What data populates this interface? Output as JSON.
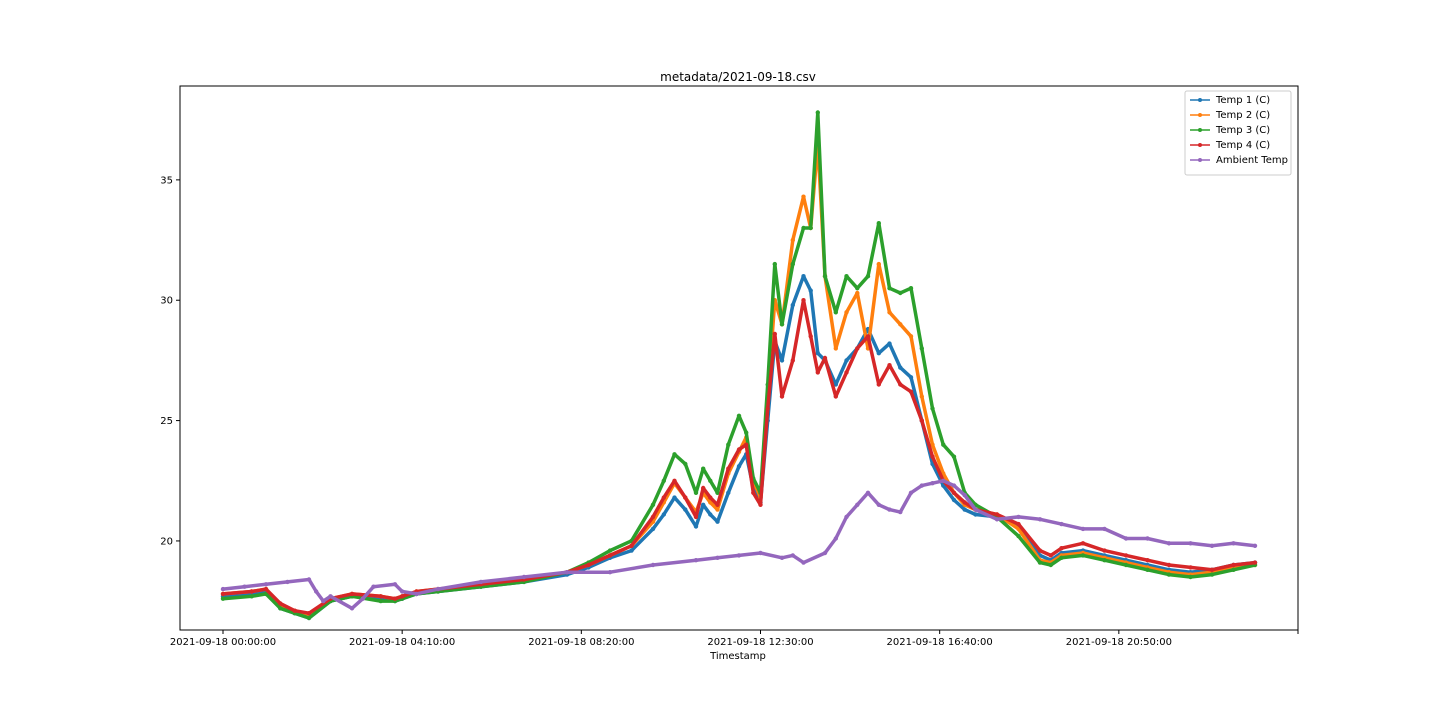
{
  "chart_data": {
    "type": "line",
    "title": "metadata/2021-09-18.csv",
    "xlabel": "Timestamp",
    "ylabel": "",
    "x_unit": "time of day (2021-09-18), hours",
    "xlim": [
      "2021-09-17 23:00:00",
      "2021-09-19 01:00:00"
    ],
    "ylim": [
      16.3,
      38.9
    ],
    "x_ticks": [
      {
        "value": "2021-09-18 00:00:00",
        "label": "2021-09-18 00:00:00"
      },
      {
        "value": "2021-09-18 04:10:00",
        "label": "2021-09-18 04:10:00"
      },
      {
        "value": "2021-09-18 08:20:00",
        "label": "2021-09-18 08:20:00"
      },
      {
        "value": "2021-09-18 12:30:00",
        "label": "2021-09-18 12:30:00"
      },
      {
        "value": "2021-09-18 16:40:00",
        "label": "2021-09-18 16:40:00"
      },
      {
        "value": "2021-09-18 20:50:00",
        "label": "2021-09-18 20:50:00"
      },
      {
        "value": "2021-09-19 01:00:00",
        "label": ""
      }
    ],
    "y_ticks": [
      20,
      25,
      30,
      35
    ],
    "grid": false,
    "legend_position": "top-right",
    "series": [
      {
        "name": "Temp 1 (C)",
        "color": "#1f77b4",
        "x": [
          "00:00",
          "00:40",
          "01:00",
          "01:20",
          "01:40",
          "02:00",
          "02:30",
          "03:00",
          "03:40",
          "04:00",
          "04:10",
          "04:30",
          "05:00",
          "06:00",
          "07:00",
          "08:00",
          "08:30",
          "09:00",
          "09:30",
          "10:00",
          "10:15",
          "10:30",
          "10:45",
          "11:00",
          "11:10",
          "11:20",
          "11:30",
          "11:45",
          "12:00",
          "12:10",
          "12:20",
          "12:30",
          "12:40",
          "12:50",
          "13:00",
          "13:15",
          "13:30",
          "13:40",
          "13:50",
          "14:00",
          "14:15",
          "14:30",
          "14:45",
          "15:00",
          "15:15",
          "15:30",
          "15:45",
          "16:00",
          "16:15",
          "16:30",
          "16:45",
          "17:00",
          "17:15",
          "17:30",
          "18:00",
          "18:30",
          "19:00",
          "19:15",
          "19:30",
          "20:00",
          "20:30",
          "21:00",
          "21:30",
          "22:00",
          "22:30",
          "23:00",
          "23:30",
          "24:00"
        ],
        "y": [
          17.7,
          17.8,
          17.9,
          17.2,
          17.0,
          16.8,
          17.5,
          17.7,
          17.6,
          17.5,
          17.6,
          17.8,
          17.9,
          18.1,
          18.3,
          18.6,
          18.9,
          19.3,
          19.6,
          20.5,
          21.1,
          21.8,
          21.3,
          20.6,
          21.5,
          21.1,
          20.8,
          22.0,
          23.1,
          23.6,
          22.2,
          21.6,
          25.0,
          28.3,
          27.5,
          29.8,
          31.0,
          30.4,
          27.8,
          27.5,
          26.5,
          27.5,
          28.0,
          28.8,
          27.8,
          28.2,
          27.2,
          26.8,
          25.0,
          23.2,
          22.3,
          21.7,
          21.3,
          21.1,
          21.0,
          20.6,
          19.4,
          19.2,
          19.5,
          19.6,
          19.4,
          19.2,
          19.0,
          18.8,
          18.7,
          18.8,
          19.0,
          19.1
        ]
      },
      {
        "name": "Temp 2 (C)",
        "color": "#ff7f0e",
        "x": [
          "00:00",
          "00:40",
          "01:00",
          "01:20",
          "01:40",
          "02:00",
          "02:30",
          "03:00",
          "03:40",
          "04:00",
          "04:10",
          "04:30",
          "05:00",
          "06:00",
          "07:00",
          "08:00",
          "08:30",
          "09:00",
          "09:30",
          "10:00",
          "10:15",
          "10:30",
          "10:45",
          "11:00",
          "11:10",
          "11:20",
          "11:30",
          "11:45",
          "12:00",
          "12:10",
          "12:20",
          "12:30",
          "12:40",
          "12:50",
          "13:00",
          "13:15",
          "13:30",
          "13:40",
          "13:50",
          "14:00",
          "14:15",
          "14:30",
          "14:45",
          "15:00",
          "15:15",
          "15:30",
          "15:45",
          "16:00",
          "16:15",
          "16:30",
          "16:45",
          "17:00",
          "17:15",
          "17:30",
          "18:00",
          "18:30",
          "19:00",
          "19:15",
          "19:30",
          "20:00",
          "20:30",
          "21:00",
          "21:30",
          "22:00",
          "22:30",
          "23:00",
          "23:30",
          "24:00"
        ],
        "y": [
          17.8,
          17.9,
          18.0,
          17.3,
          17.1,
          16.9,
          17.6,
          17.8,
          17.7,
          17.6,
          17.7,
          17.9,
          18.0,
          18.2,
          18.4,
          18.7,
          19.0,
          19.4,
          19.8,
          20.8,
          21.6,
          22.4,
          21.8,
          21.2,
          22.0,
          21.6,
          21.3,
          22.8,
          23.7,
          24.3,
          22.5,
          21.8,
          26.0,
          30.0,
          29.0,
          32.5,
          34.3,
          33.0,
          36.5,
          31.0,
          28.0,
          29.5,
          30.3,
          28.0,
          31.5,
          29.5,
          29.0,
          28.5,
          26.0,
          24.0,
          22.8,
          22.0,
          21.5,
          21.3,
          21.1,
          20.5,
          19.2,
          19.1,
          19.4,
          19.5,
          19.3,
          19.1,
          18.9,
          18.7,
          18.6,
          18.7,
          18.9,
          19.0
        ]
      },
      {
        "name": "Temp 3 (C)",
        "color": "#2ca02c",
        "x": [
          "00:00",
          "00:40",
          "01:00",
          "01:20",
          "01:40",
          "02:00",
          "02:30",
          "03:00",
          "03:40",
          "04:00",
          "04:10",
          "04:30",
          "05:00",
          "06:00",
          "07:00",
          "08:00",
          "08:30",
          "09:00",
          "09:30",
          "10:00",
          "10:15",
          "10:30",
          "10:45",
          "11:00",
          "11:10",
          "11:20",
          "11:30",
          "11:45",
          "12:00",
          "12:10",
          "12:20",
          "12:30",
          "12:40",
          "12:50",
          "13:00",
          "13:15",
          "13:30",
          "13:40",
          "13:50",
          "14:00",
          "14:15",
          "14:30",
          "14:45",
          "15:00",
          "15:15",
          "15:30",
          "15:45",
          "16:00",
          "16:15",
          "16:30",
          "16:45",
          "17:00",
          "17:15",
          "17:30",
          "18:00",
          "18:30",
          "19:00",
          "19:15",
          "19:30",
          "20:00",
          "20:30",
          "21:00",
          "21:30",
          "22:00",
          "22:30",
          "23:00",
          "23:30",
          "24:00"
        ],
        "y": [
          17.6,
          17.7,
          17.8,
          17.2,
          17.0,
          16.8,
          17.5,
          17.7,
          17.5,
          17.5,
          17.6,
          17.8,
          17.9,
          18.1,
          18.3,
          18.7,
          19.1,
          19.6,
          20.0,
          21.5,
          22.5,
          23.6,
          23.2,
          22.0,
          23.0,
          22.5,
          22.0,
          24.0,
          25.2,
          24.5,
          22.6,
          22.0,
          26.5,
          31.5,
          29.0,
          31.5,
          33.0,
          33.0,
          37.8,
          31.0,
          29.5,
          31.0,
          30.5,
          31.0,
          33.2,
          30.5,
          30.3,
          30.5,
          28.0,
          25.5,
          24.0,
          23.5,
          22.0,
          21.5,
          21.0,
          20.2,
          19.1,
          19.0,
          19.3,
          19.4,
          19.2,
          19.0,
          18.8,
          18.6,
          18.5,
          18.6,
          18.8,
          19.0
        ]
      },
      {
        "name": "Temp 4 (C)",
        "color": "#d62728",
        "x": [
          "00:00",
          "00:40",
          "01:00",
          "01:20",
          "01:40",
          "02:00",
          "02:30",
          "03:00",
          "03:40",
          "04:00",
          "04:10",
          "04:30",
          "05:00",
          "06:00",
          "07:00",
          "08:00",
          "08:30",
          "09:00",
          "09:30",
          "10:00",
          "10:15",
          "10:30",
          "10:45",
          "11:00",
          "11:10",
          "11:20",
          "11:30",
          "11:45",
          "12:00",
          "12:10",
          "12:20",
          "12:30",
          "12:40",
          "12:50",
          "13:00",
          "13:15",
          "13:30",
          "13:40",
          "13:50",
          "14:00",
          "14:15",
          "14:30",
          "14:45",
          "15:00",
          "15:15",
          "15:30",
          "15:45",
          "16:00",
          "16:15",
          "16:30",
          "16:45",
          "17:00",
          "17:15",
          "17:30",
          "18:00",
          "18:30",
          "19:00",
          "19:15",
          "19:30",
          "20:00",
          "20:30",
          "21:00",
          "21:30",
          "22:00",
          "22:30",
          "23:00",
          "23:30",
          "24:00"
        ],
        "y": [
          17.8,
          17.9,
          18.0,
          17.4,
          17.1,
          17.0,
          17.6,
          17.8,
          17.7,
          17.6,
          17.7,
          17.9,
          18.0,
          18.2,
          18.4,
          18.7,
          19.0,
          19.4,
          19.8,
          21.0,
          21.8,
          22.5,
          21.8,
          21.0,
          22.2,
          21.8,
          21.5,
          23.0,
          23.8,
          24.0,
          22.0,
          21.5,
          25.5,
          28.6,
          26.0,
          27.5,
          30.0,
          28.5,
          27.0,
          27.6,
          26.0,
          27.0,
          28.0,
          28.5,
          26.5,
          27.3,
          26.5,
          26.2,
          25.0,
          23.5,
          22.5,
          22.0,
          21.6,
          21.3,
          21.1,
          20.7,
          19.6,
          19.4,
          19.7,
          19.9,
          19.6,
          19.4,
          19.2,
          19.0,
          18.9,
          18.8,
          19.0,
          19.1
        ]
      },
      {
        "name": "Ambient Temp",
        "color": "#9467bd",
        "x": [
          "00:00",
          "00:30",
          "01:00",
          "01:30",
          "02:00",
          "02:10",
          "02:20",
          "02:30",
          "03:00",
          "03:15",
          "03:30",
          "04:00",
          "04:10",
          "04:30",
          "05:00",
          "06:00",
          "07:00",
          "08:00",
          "09:00",
          "10:00",
          "11:00",
          "11:30",
          "12:00",
          "12:30",
          "13:00",
          "13:15",
          "13:30",
          "14:00",
          "14:15",
          "14:30",
          "14:45",
          "15:00",
          "15:15",
          "15:30",
          "15:45",
          "16:00",
          "16:15",
          "16:30",
          "16:45",
          "17:00",
          "17:15",
          "17:30",
          "18:00",
          "18:30",
          "19:00",
          "19:30",
          "20:00",
          "20:30",
          "21:00",
          "21:30",
          "22:00",
          "22:30",
          "23:00",
          "23:30",
          "24:00"
        ],
        "y": [
          18.0,
          18.1,
          18.2,
          18.3,
          18.4,
          17.9,
          17.5,
          17.7,
          17.2,
          17.6,
          18.1,
          18.2,
          17.9,
          17.8,
          18.0,
          18.3,
          18.5,
          18.7,
          18.7,
          19.0,
          19.2,
          19.3,
          19.4,
          19.5,
          19.3,
          19.4,
          19.1,
          19.5,
          20.1,
          21.0,
          21.5,
          22.0,
          21.5,
          21.3,
          21.2,
          22.0,
          22.3,
          22.4,
          22.5,
          22.3,
          21.9,
          21.3,
          20.9,
          21.0,
          20.9,
          20.7,
          20.5,
          20.5,
          20.1,
          20.1,
          19.9,
          19.9,
          19.8,
          19.9,
          19.8
        ]
      }
    ]
  }
}
